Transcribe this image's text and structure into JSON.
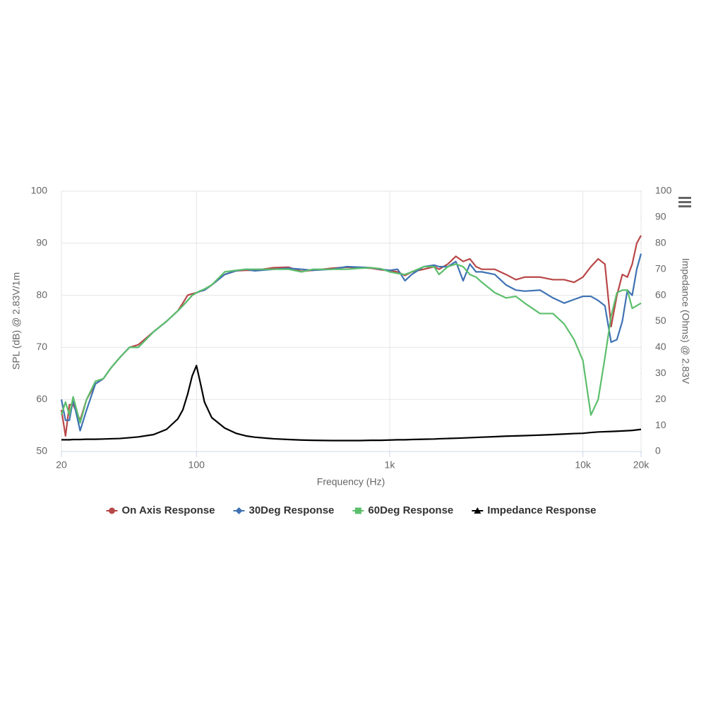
{
  "chart_data": {
    "type": "line",
    "xlabel": "Frequency (Hz)",
    "ylabel": "SPL (dB) @ 2.83V/1m",
    "y2label": "Impedance (Ohms) @ 2.83V",
    "xscale": "log",
    "xlim": [
      20,
      20000
    ],
    "xticks": [
      20,
      100,
      {
        "value": 1000,
        "label": "1k"
      },
      {
        "value": 10000,
        "label": "10k"
      },
      {
        "value": 20000,
        "label": "20k"
      }
    ],
    "ylim": [
      50,
      100
    ],
    "yticks": [
      50,
      60,
      70,
      80,
      90,
      100
    ],
    "y2lim": [
      0,
      100
    ],
    "y2ticks": [
      0,
      10,
      20,
      30,
      40,
      50,
      60,
      70,
      80,
      90,
      100
    ],
    "grid": true,
    "legend": "bottom",
    "x": [
      20,
      21,
      22,
      23,
      25,
      27,
      30,
      33,
      36,
      40,
      45,
      50,
      60,
      70,
      80,
      85,
      90,
      95,
      100,
      105,
      110,
      120,
      140,
      160,
      180,
      200,
      250,
      300,
      350,
      400,
      500,
      600,
      700,
      800,
      900,
      1000,
      1100,
      1200,
      1300,
      1500,
      1700,
      1800,
      2000,
      2200,
      2400,
      2600,
      2800,
      3000,
      3500,
      4000,
      4500,
      5000,
      6000,
      7000,
      8000,
      9000,
      10000,
      11000,
      12000,
      13000,
      14000,
      15000,
      16000,
      17000,
      18000,
      19000,
      20000
    ],
    "series": [
      {
        "name": "On Axis Response",
        "color": "#b84747",
        "marker": "circle",
        "values": [
          58,
          53,
          59,
          59,
          56,
          60,
          63,
          64,
          66,
          68,
          70,
          70.5,
          73,
          75,
          77,
          78.5,
          80,
          80.3,
          80.5,
          80.8,
          81,
          82,
          84,
          84.7,
          84.8,
          84.8,
          85.3,
          85.4,
          84.6,
          84.8,
          85.2,
          85.4,
          85.3,
          85.2,
          84.9,
          84.7,
          84.5,
          83.8,
          84.5,
          85,
          85.5,
          85,
          86,
          87.5,
          86.5,
          87,
          85.5,
          85,
          85,
          84,
          83,
          83.5,
          83.5,
          83,
          83,
          82.5,
          83.5,
          85.5,
          87,
          86,
          74,
          80,
          84,
          83.5,
          86,
          90,
          91.5
        ]
      },
      {
        "name": "30Deg Response",
        "color": "#3f72b3",
        "marker": "diamond",
        "values": [
          60,
          56,
          56,
          60,
          54,
          58,
          63,
          64,
          66,
          68,
          70,
          70,
          73,
          75,
          77,
          78,
          79,
          80,
          80.5,
          80.8,
          81,
          82,
          84,
          84.7,
          85,
          84.7,
          85,
          85.2,
          85,
          84.8,
          85,
          85.5,
          85.4,
          85.3,
          85,
          84.8,
          85,
          82.8,
          84,
          85.5,
          85.8,
          85.5,
          85.5,
          86.5,
          82.8,
          86,
          84.5,
          84.5,
          84,
          82,
          81,
          80.8,
          81,
          79.5,
          78.5,
          79.2,
          79.8,
          79.8,
          79,
          78,
          71,
          71.5,
          75,
          81,
          80,
          85,
          88
        ]
      },
      {
        "name": "60Deg Response",
        "color": "#5cbf6c",
        "marker": "square",
        "values": [
          57,
          59.5,
          57,
          60.5,
          55.5,
          60,
          63.5,
          64,
          66,
          68,
          70,
          70,
          73,
          75,
          77,
          78,
          79,
          80,
          80.5,
          80.9,
          81.2,
          82,
          84.5,
          84.8,
          85,
          85,
          85,
          85,
          84.5,
          85,
          85,
          85,
          85.2,
          85.3,
          85.1,
          84.5,
          84.2,
          84,
          84.5,
          85.5,
          85.5,
          84,
          85.5,
          86,
          85.5,
          84,
          83.5,
          82.5,
          80.5,
          79.5,
          79.8,
          78.5,
          76.5,
          76.5,
          74.5,
          71.5,
          67.5,
          57,
          60,
          68,
          76,
          80.5,
          81,
          81,
          77.5,
          78,
          78.5
        ]
      },
      {
        "name": "Impedance Response",
        "color": "#000000",
        "marker": "triangle",
        "axis": "y2",
        "values": [
          4.5,
          4.5,
          4.5,
          4.6,
          4.6,
          4.7,
          4.7,
          4.8,
          4.9,
          5,
          5.3,
          5.6,
          6.5,
          8.5,
          12.5,
          16,
          22,
          29,
          33,
          26,
          19,
          13,
          9,
          7,
          6,
          5.5,
          4.9,
          4.6,
          4.4,
          4.3,
          4.2,
          4.2,
          4.2,
          4.3,
          4.3,
          4.4,
          4.5,
          4.5,
          4.6,
          4.7,
          4.8,
          4.9,
          5,
          5.1,
          5.2,
          5.3,
          5.4,
          5.5,
          5.7,
          5.9,
          6,
          6.1,
          6.3,
          6.5,
          6.7,
          6.9,
          7,
          7.3,
          7.5,
          7.6,
          7.7,
          7.8,
          7.9,
          8,
          8.1,
          8.3,
          8.5
        ]
      }
    ]
  }
}
